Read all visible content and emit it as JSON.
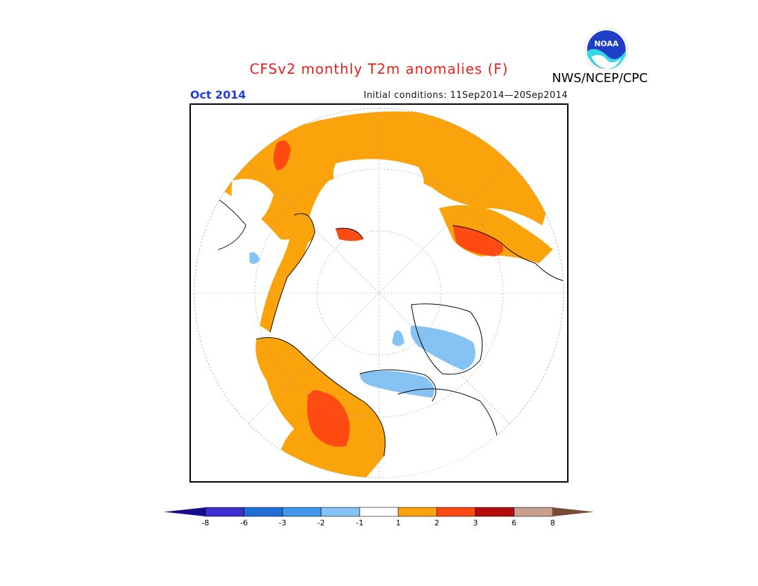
{
  "header": {
    "title": "CFSv2 monthly T2m anomalies (F)",
    "month": "Oct 2014",
    "initial_conditions": "Initial conditions: 11Sep2014—20Sep2014",
    "agency": "NWS/NCEP/CPC",
    "logo_text": "NOAA"
  },
  "map": {
    "projection": "north-polar-stereographic",
    "variable": "T2m anomaly (F)"
  },
  "colorbar": {
    "ticks": [
      "-8",
      "-6",
      "-3",
      "-2",
      "-1",
      "1",
      "2",
      "3",
      "6",
      "8"
    ],
    "colors": {
      "below_-8": "#1a0a8c",
      "-8_-6": "#3c2fd2",
      "-6_-3": "#1f6fd6",
      "-3_-2": "#3f98ee",
      "-2_-1": "#86c3f5",
      "-1_1": "#ffffff",
      "1_2": "#fba30a",
      "2_3": "#ff4a12",
      "3_6": "#b50d0d",
      "6_8": "#c9a08e",
      "above_8": "#7a4a34"
    }
  }
}
